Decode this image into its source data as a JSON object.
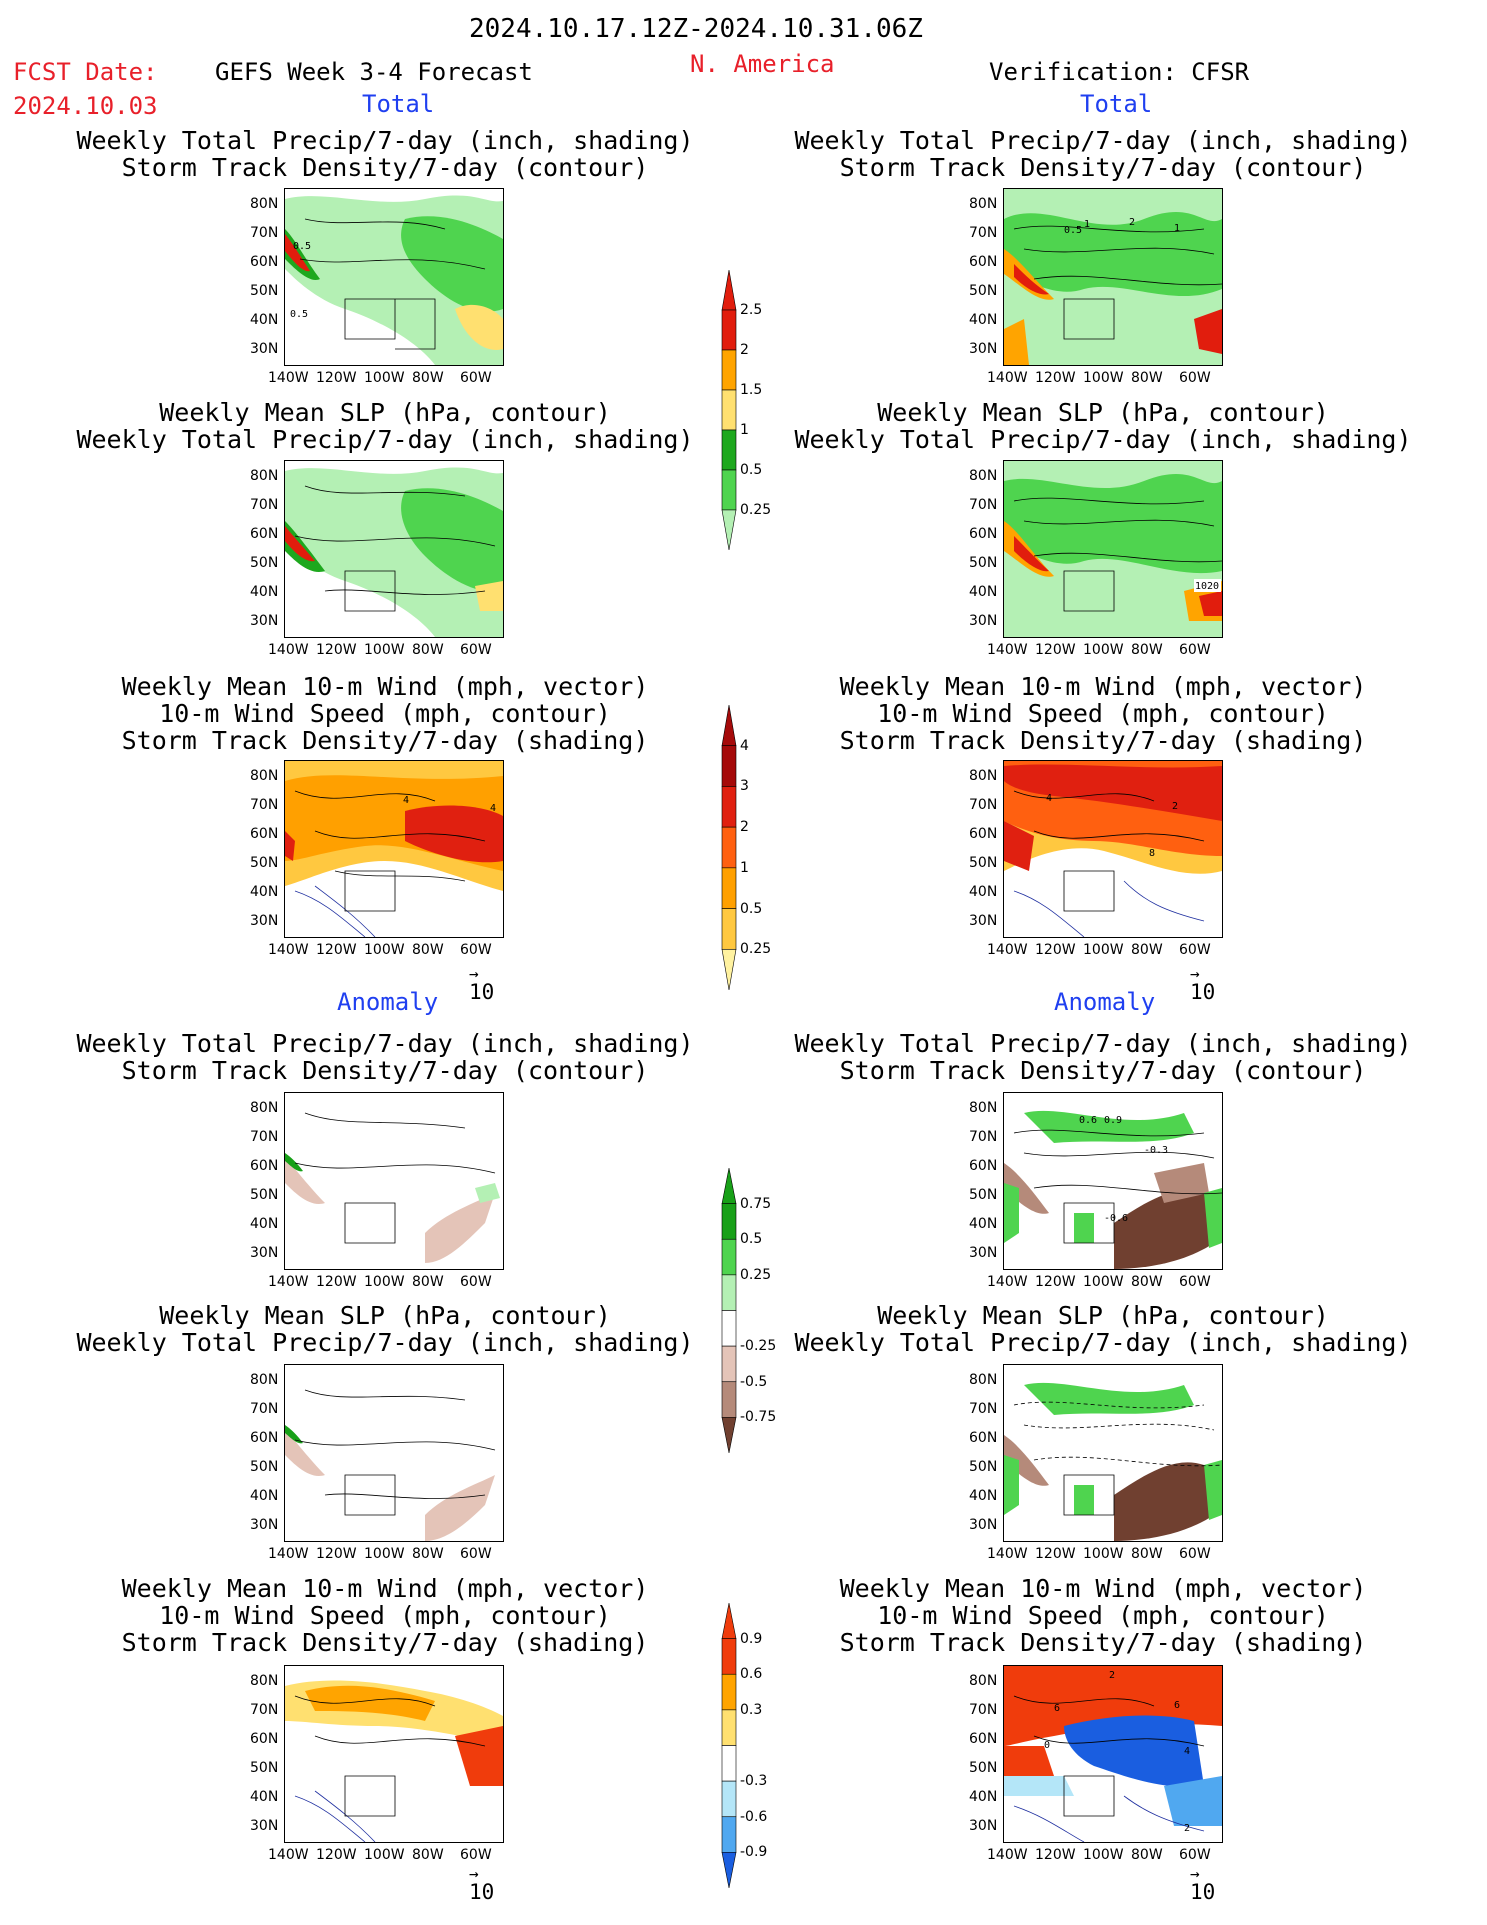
{
  "header": {
    "date_range": "2024.10.17.12Z-2024.10.31.06Z",
    "fcst_label": "FCST Date:",
    "fcst_date": "2024.10.03",
    "model": "GEFS Week 3-4 Forecast",
    "region": "N. America",
    "verification": "Verification: CFSR"
  },
  "sections": {
    "total": "Total",
    "anomaly": "Anomaly"
  },
  "titles": {
    "precip_track_1": "Weekly Total Precip/7-day (inch, shading)",
    "precip_track_2": "Storm Track Density/7-day (contour)",
    "slp_precip_1": "Weekly Mean SLP (hPa, contour)",
    "slp_precip_2": "Weekly Total Precip/7-day (inch, shading)",
    "wind_1": "Weekly Mean 10-m Wind (mph, vector)",
    "wind_2": "10-m Wind Speed (mph, contour)",
    "wind_3": "Storm Track Density/7-day (shading)"
  },
  "axes": {
    "lat_ticks": [
      "80N",
      "70N",
      "60N",
      "50N",
      "40N",
      "30N"
    ],
    "lon_ticks": [
      "140W",
      "120W",
      "100W",
      "80W",
      "60W"
    ]
  },
  "vector_ref": "10",
  "colorbars": {
    "precip_total": {
      "labels": [
        "2.5",
        "2",
        "1.5",
        "1",
        "0.5",
        "0.25"
      ],
      "colors": [
        "#e11d0d",
        "#ffa400",
        "#ffe070",
        "#1ea81e",
        "#4fd44f",
        "#b4f0b4"
      ]
    },
    "track_total": {
      "labels": [
        "4",
        "3",
        "2",
        "1",
        "0.5",
        "0.25"
      ],
      "colors": [
        "#a50a0a",
        "#e02010",
        "#ff6010",
        "#ffa000",
        "#ffc840",
        "#fff2a0"
      ]
    },
    "precip_anom": {
      "labels": [
        "0.75",
        "0.5",
        "0.25",
        "-0.25",
        "-0.5",
        "-0.75"
      ],
      "colors": [
        "#18a018",
        "#4fd44f",
        "#b4f0b4",
        "#ffffff",
        "#e4c4b8",
        "#b58a7a",
        "#704030"
      ]
    },
    "track_anom": {
      "labels": [
        "0.9",
        "0.6",
        "0.3",
        "-0.3",
        "-0.6",
        "-0.9"
      ],
      "colors": [
        "#f03c0c",
        "#ffa400",
        "#ffe070",
        "#ffffff",
        "#b4e6f8",
        "#50a8f0",
        "#1a5ee0"
      ]
    }
  },
  "contour_labels": {
    "fc_track": [
      "0.5",
      "0.5"
    ],
    "ob_track": [
      "0.5",
      "1",
      "2",
      "1"
    ],
    "ob_slp": [
      "1020"
    ],
    "fc_wind": [
      "4",
      "4"
    ],
    "ob_wind": [
      "4",
      "2",
      "8"
    ],
    "ob_anom_track": [
      "0.6",
      "0.9",
      "-0.3",
      "-0.6"
    ],
    "ob_anom_wind": [
      "2",
      "6",
      "0",
      "6",
      "4",
      "2"
    ]
  }
}
